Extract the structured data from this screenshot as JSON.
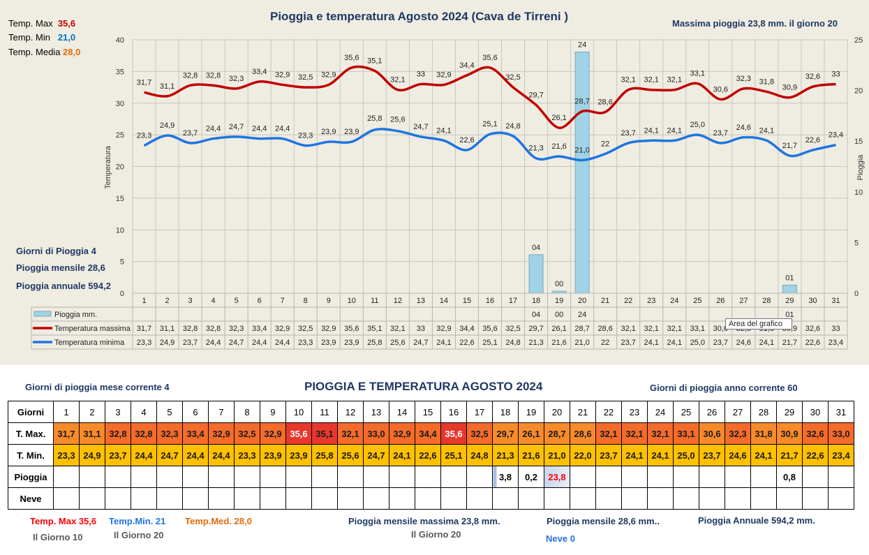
{
  "chart_data": {
    "type": "line",
    "title": "Pioggia e temperatura Agosto 2024 (Cava de Tirreni )",
    "ylabel": "Temperatura",
    "ylabel_right": "Pioggia",
    "ylim": [
      0,
      40
    ],
    "ylim_right": [
      0,
      25
    ],
    "yticks": [
      0,
      5,
      10,
      15,
      20,
      25,
      30,
      35,
      40
    ],
    "yticks_right": [
      0,
      5,
      10,
      15,
      20,
      25
    ],
    "grid": true,
    "categories": [
      "1",
      "2",
      "3",
      "4",
      "5",
      "6",
      "7",
      "8",
      "9",
      "10",
      "11",
      "12",
      "13",
      "14",
      "15",
      "16",
      "17",
      "18",
      "19",
      "20",
      "21",
      "22",
      "23",
      "24",
      "25",
      "26",
      "27",
      "28",
      "29",
      "30",
      "31"
    ],
    "series": [
      {
        "name": "Pioggia mm.",
        "type": "bar",
        "axis": "right",
        "color": "#9fd3e6",
        "values": [
          null,
          null,
          null,
          null,
          null,
          null,
          null,
          null,
          null,
          null,
          null,
          null,
          null,
          null,
          null,
          null,
          null,
          3.8,
          0.2,
          23.8,
          null,
          null,
          null,
          null,
          null,
          null,
          null,
          null,
          0.8,
          null,
          null
        ],
        "labels": [
          "",
          "",
          "",
          "",
          "",
          "",
          "",
          "",
          "",
          "",
          "",
          "",
          "",
          "",
          "",
          "",
          "",
          "04",
          "00",
          "24",
          "",
          "",
          "",
          "",
          "",
          "",
          "",
          "",
          "01",
          "",
          ""
        ]
      },
      {
        "name": "Temperatura massima",
        "type": "line",
        "axis": "left",
        "color": "#c00000",
        "values": [
          31.7,
          31.1,
          32.8,
          32.8,
          32.3,
          33.4,
          32.9,
          32.5,
          32.9,
          35.6,
          35.1,
          32.1,
          33,
          32.9,
          34.4,
          35.6,
          32.5,
          29.7,
          26.1,
          28.7,
          28.6,
          32.1,
          32.1,
          32.1,
          33.1,
          30.6,
          32.3,
          31.8,
          30.9,
          32.6,
          33
        ],
        "labels": [
          "31,7",
          "31,1",
          "32,8",
          "32,8",
          "32,3",
          "33,4",
          "32,9",
          "32,5",
          "32,9",
          "35,6",
          "35,1",
          "32,1",
          "33",
          "32,9",
          "34,4",
          "35,6",
          "32,5",
          "29,7",
          "26,1",
          "28,7",
          "28,6",
          "32,1",
          "32,1",
          "32,1",
          "33,1",
          "30,6",
          "32,3",
          "31,8",
          "30,9",
          "32,6",
          "33"
        ]
      },
      {
        "name": "Temperatura minima",
        "type": "line",
        "axis": "left",
        "color": "#1f75e0",
        "values": [
          23.3,
          24.9,
          23.7,
          24.4,
          24.7,
          24.4,
          24.4,
          23.3,
          23.9,
          23.9,
          25.8,
          25.6,
          24.7,
          24.1,
          22.6,
          25.1,
          24.8,
          21.3,
          21.6,
          21.0,
          22,
          23.7,
          24.1,
          24.1,
          25.0,
          23.7,
          24.6,
          24.1,
          21.7,
          22.6,
          23.4
        ],
        "labels": [
          "23,3",
          "24,9",
          "23,7",
          "24,4",
          "24,7",
          "24,4",
          "24,4",
          "23,3",
          "23,9",
          "23,9",
          "25,8",
          "25,6",
          "24,7",
          "24,1",
          "22,6",
          "25,1",
          "24,8",
          "21,3",
          "21,6",
          "21,0",
          "22",
          "23,7",
          "24,1",
          "24,1",
          "25,0",
          "23,7",
          "24,6",
          "24,1",
          "21,7",
          "22,6",
          "23,4"
        ]
      }
    ]
  },
  "header": {
    "temp_max_label": "Temp. Max",
    "temp_max": "35,6",
    "temp_min_label": "Temp. Min",
    "temp_min": "21,0",
    "temp_media_label": "Temp. Media",
    "temp_media": "28,0",
    "massima_pioggia": "Massima pioggia  23,8 mm. il giorno  20"
  },
  "side_stats": {
    "giorni_pioggia": "Giorni di Pioggia  4",
    "pioggia_mensile": "Pioggia mensile  28,6",
    "pioggia_annuale": "Pioggia annuale  594,2"
  },
  "tooltip": "Area del grafico",
  "bottom": {
    "title": "PIOGGIA E TEMPERATURA AGOSTO 2024",
    "giorni_mese": "Giorni di pioggia mese corrente    4",
    "giorni_anno": "Giorni di pioggia anno corrente  60",
    "row_labels": {
      "days": "Giorni",
      "tmax": "T. Max.",
      "tmin": "T. Min.",
      "rain": "Pioggia",
      "snow": "Neve"
    },
    "tmax": [
      "31,7",
      "31,1",
      "32,8",
      "32,8",
      "32,3",
      "33,4",
      "32,9",
      "32,5",
      "32,9",
      "35,6",
      "35,1",
      "32,1",
      "33,0",
      "32,9",
      "34,4",
      "35,6",
      "32,5",
      "29,7",
      "26,1",
      "28,7",
      "28,6",
      "32,1",
      "32,1",
      "32,1",
      "33,1",
      "30,6",
      "32,3",
      "31,8",
      "30,9",
      "32,6",
      "33,0"
    ],
    "tmin": [
      "23,3",
      "24,9",
      "23,7",
      "24,4",
      "24,7",
      "24,4",
      "24,4",
      "23,3",
      "23,9",
      "23,9",
      "25,8",
      "25,6",
      "24,7",
      "24,1",
      "22,6",
      "25,1",
      "24,8",
      "21,3",
      "21,6",
      "21,0",
      "22,0",
      "23,7",
      "24,1",
      "24,1",
      "25,0",
      "23,7",
      "24,6",
      "24,1",
      "21,7",
      "22,6",
      "23,4"
    ],
    "rain": [
      "",
      "",
      "",
      "",
      "",
      "",
      "",
      "",
      "",
      "",
      "",
      "",
      "",
      "",
      "",
      "",
      "",
      "3,8",
      "0,2",
      "23,8",
      "",
      "",
      "",
      "",
      "",
      "",
      "",
      "",
      "0,8",
      "",
      ""
    ],
    "tmax_colors": {
      "hot": "#e8372c",
      "mid": "#f46b2a",
      "low": "#f88a2a"
    },
    "tmin_colors": {
      "base": "#ffc000"
    },
    "footer": {
      "temp_max": "Temp. Max 35,6",
      "temp_min": "Temp.Min. 21",
      "temp_med": "Temp.Med. 28,0",
      "giorno_max": "Il Giorno  10",
      "giorno_min": "Il Giorno 20",
      "pioggia_mensile_massima": "Pioggia mensile massima 23,8   mm.",
      "giorno_pioggia": "Il Giorno 20",
      "pioggia_mensile": "Pioggia mensile 28,6   mm..",
      "neve": "Neve 0",
      "pioggia_annuale": "Pioggia Annuale 594,2    mm."
    }
  }
}
